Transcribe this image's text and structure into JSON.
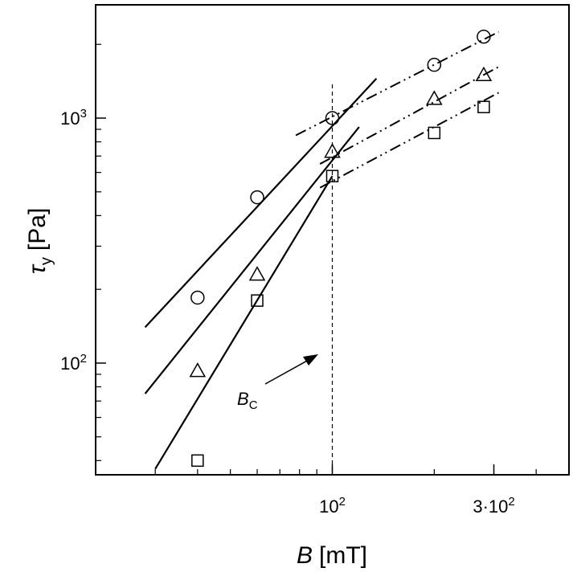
{
  "chart_data": {
    "type": "scatter",
    "x_scale": "log",
    "y_scale": "log",
    "xlim": [
      20,
      500
    ],
    "ylim": [
      35,
      2900
    ],
    "x_ticks": [
      {
        "value": 100,
        "base": "10",
        "exp": "2"
      },
      {
        "value": 300,
        "base": "3·10",
        "exp": "2"
      }
    ],
    "y_ticks": [
      {
        "value": 100,
        "base": "10",
        "exp": "2"
      },
      {
        "value": 1000,
        "base": "10",
        "exp": "3"
      }
    ],
    "x_minor_ticks": [
      30,
      40,
      50,
      60,
      70,
      80,
      90,
      200,
      400
    ],
    "y_minor_ticks": [
      40,
      50,
      60,
      70,
      80,
      90,
      200,
      300,
      400,
      500,
      600,
      700,
      800,
      900,
      2000
    ],
    "xlabel": {
      "symbol": "B",
      "unit": "[mT]"
    },
    "ylabel": {
      "symbol": "τ",
      "subscript": "y",
      "unit": "[Pa]"
    },
    "grid": false,
    "critical_field": {
      "value": 100,
      "label_symbol": "B",
      "label_subscript": "C"
    },
    "series": [
      {
        "marker": "circle",
        "points": [
          [
            40,
            185
          ],
          [
            60,
            475
          ],
          [
            100,
            1000
          ],
          [
            200,
            1650
          ],
          [
            280,
            2150
          ]
        ],
        "fit_low": {
          "x": [
            28,
            135
          ],
          "y": [
            140,
            1450
          ],
          "style": "solid"
        },
        "fit_high": {
          "x": [
            78,
            310
          ],
          "y": [
            850,
            2250
          ],
          "style": "dash-dot-dot"
        }
      },
      {
        "marker": "triangle",
        "points": [
          [
            40,
            93
          ],
          [
            60,
            230
          ],
          [
            100,
            730
          ],
          [
            200,
            1200
          ],
          [
            280,
            1500
          ]
        ],
        "fit_low": {
          "x": [
            28,
            120
          ],
          "y": [
            75,
            920
          ],
          "style": "solid"
        },
        "fit_high": {
          "x": [
            92,
            310
          ],
          "y": [
            650,
            1620
          ],
          "style": "dash-dot-dot"
        }
      },
      {
        "marker": "square",
        "points": [
          [
            40,
            40
          ],
          [
            60,
            180
          ],
          [
            100,
            580
          ],
          [
            200,
            870
          ],
          [
            280,
            1110
          ]
        ],
        "fit_low": {
          "x": [
            30,
            100
          ],
          "y": [
            37,
            580
          ],
          "style": "solid"
        },
        "fit_high": {
          "x": [
            92,
            310
          ],
          "y": [
            520,
            1270
          ],
          "style": "dash-dot-dot"
        }
      }
    ]
  }
}
